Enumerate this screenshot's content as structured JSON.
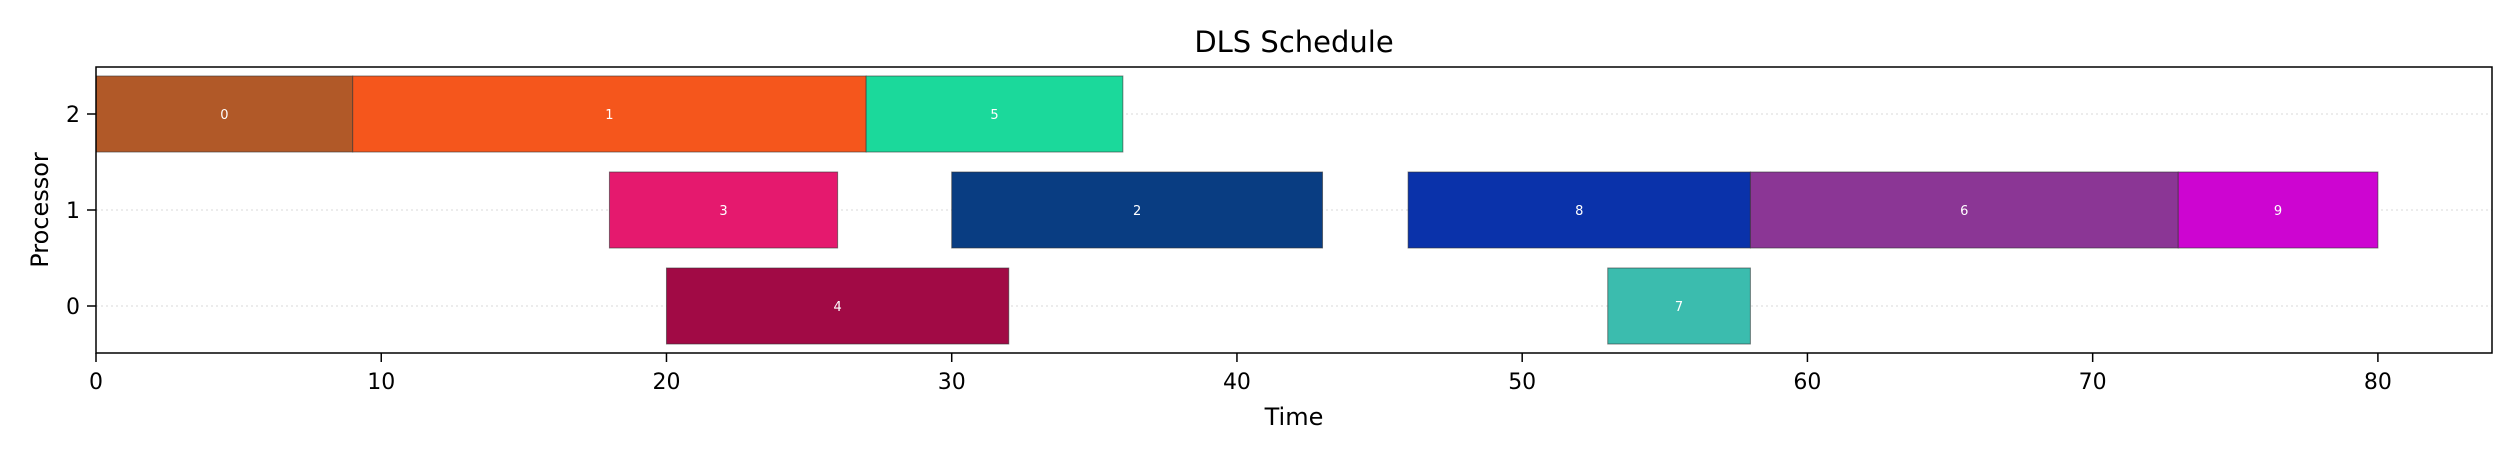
{
  "chart_data": {
    "type": "gantt",
    "title": "DLS Schedule",
    "xlabel": "Time",
    "ylabel": "Processor",
    "xlim": [
      0,
      84
    ],
    "xticks": [
      0,
      10,
      20,
      30,
      40,
      50,
      60,
      70,
      80
    ],
    "processors": [
      0,
      1,
      2
    ],
    "grid": "horizontal dotted",
    "tasks": [
      {
        "label": "0",
        "processor": 2,
        "start": 0,
        "end": 9,
        "color": "#b15928"
      },
      {
        "label": "1",
        "processor": 2,
        "start": 9,
        "end": 27,
        "color": "#f5561c"
      },
      {
        "label": "5",
        "processor": 2,
        "start": 27,
        "end": 36,
        "color": "#1bd99b"
      },
      {
        "label": "3",
        "processor": 1,
        "start": 18,
        "end": 26,
        "color": "#e5196e"
      },
      {
        "label": "2",
        "processor": 1,
        "start": 30,
        "end": 43,
        "color": "#093d82"
      },
      {
        "label": "8",
        "processor": 1,
        "start": 46,
        "end": 58,
        "color": "#0a32aa"
      },
      {
        "label": "6",
        "processor": 1,
        "start": 58,
        "end": 73,
        "color": "#8b3695"
      },
      {
        "label": "9",
        "processor": 1,
        "start": 73,
        "end": 80,
        "color": "#cd05d1"
      },
      {
        "label": "4",
        "processor": 0,
        "start": 20,
        "end": 32,
        "color": "#a10a45"
      },
      {
        "label": "7",
        "processor": 0,
        "start": 53,
        "end": 58,
        "color": "#3bbcae"
      }
    ]
  }
}
